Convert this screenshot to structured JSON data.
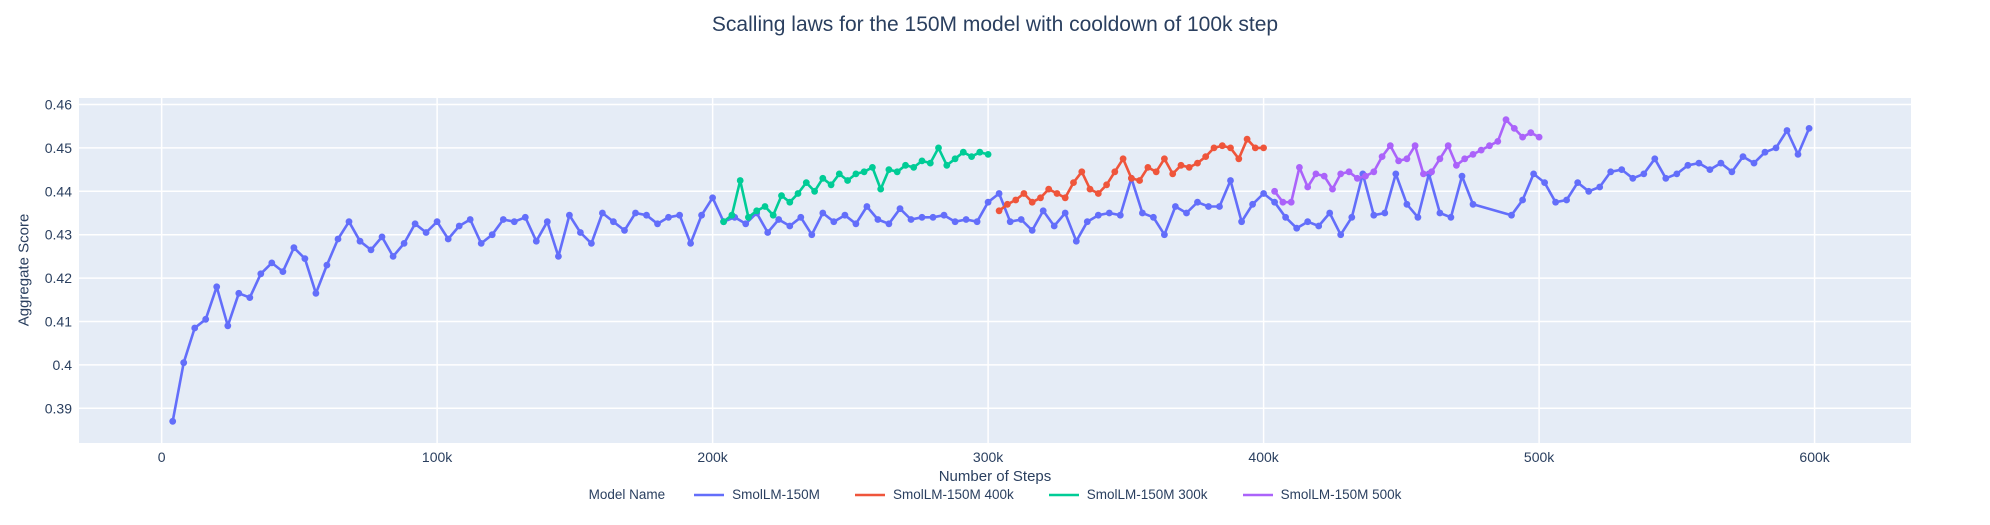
{
  "figure": {
    "title": "Scalling laws for the 150M model with cooldown of 100k step"
  },
  "x_axis": {
    "title": "Number of Steps",
    "ticks": [
      {
        "value": 0,
        "label": "0"
      },
      {
        "value": 100000,
        "label": "100k"
      },
      {
        "value": 200000,
        "label": "200k"
      },
      {
        "value": 300000,
        "label": "300k"
      },
      {
        "value": 400000,
        "label": "400k"
      },
      {
        "value": 500000,
        "label": "500k"
      },
      {
        "value": 600000,
        "label": "600k"
      }
    ]
  },
  "y_axis": {
    "title": "Aggregate Score",
    "ticks": [
      {
        "value": 0.39,
        "label": "0.39"
      },
      {
        "value": 0.4,
        "label": "0.4"
      },
      {
        "value": 0.41,
        "label": "0.41"
      },
      {
        "value": 0.42,
        "label": "0.42"
      },
      {
        "value": 0.43,
        "label": "0.43"
      },
      {
        "value": 0.44,
        "label": "0.44"
      },
      {
        "value": 0.45,
        "label": "0.45"
      },
      {
        "value": 0.46,
        "label": "0.46"
      }
    ]
  },
  "legend": {
    "title": "Model Name"
  },
  "theme": {
    "paper_bg": "#ffffff",
    "plot_bg": "#e5ecf6",
    "grid": "#ffffff",
    "font_color": "#2a3f5f"
  },
  "chart_data": {
    "type": "line",
    "mode": "lines+markers",
    "title": "Scalling laws for the 150M model with cooldown of 100k step",
    "xlabel": "Number of Steps",
    "ylabel": "Aggregate Score",
    "xlim": [
      -30000,
      635000
    ],
    "ylim": [
      0.382,
      0.4615
    ],
    "grid": true,
    "legend_position": "bottom-center",
    "legend_title": "Model Name",
    "series": [
      {
        "name": "SmolLM-150M",
        "color": "#636efa",
        "steps": [
          4000,
          8000,
          12000,
          16000,
          20000,
          24000,
          28000,
          32000,
          36000,
          40000,
          44000,
          48000,
          52000,
          56000,
          60000,
          64000,
          68000,
          72000,
          76000,
          80000,
          84000,
          88000,
          92000,
          96000,
          100000,
          104000,
          108000,
          112000,
          116000,
          120000,
          124000,
          128000,
          132000,
          136000,
          140000,
          144000,
          148000,
          152000,
          156000,
          160000,
          164000,
          168000,
          172000,
          176000,
          180000,
          184000,
          188000,
          192000,
          196000,
          200000,
          204000,
          208000,
          212000,
          216000,
          220000,
          224000,
          228000,
          232000,
          236000,
          240000,
          244000,
          248000,
          252000,
          256000,
          260000,
          264000,
          268000,
          272000,
          276000,
          280000,
          284000,
          288000,
          292000,
          296000,
          300000,
          304000,
          308000,
          312000,
          316000,
          320000,
          324000,
          328000,
          332000,
          336000,
          340000,
          344000,
          348000,
          352000,
          356000,
          360000,
          364000,
          368000,
          372000,
          376000,
          380000,
          384000,
          388000,
          392000,
          396000,
          400000,
          404000,
          408000,
          412000,
          416000,
          420000,
          424000,
          428000,
          432000,
          436000,
          440000,
          444000,
          448000,
          452000,
          456000,
          460000,
          464000,
          468000,
          472000,
          476000,
          490000,
          494000,
          498000,
          502000,
          506000,
          510000,
          514000,
          518000,
          522000,
          526000,
          530000,
          534000,
          538000,
          542000,
          546000,
          550000,
          554000,
          558000,
          562000,
          566000,
          570000,
          574000,
          578000,
          582000,
          586000,
          590000,
          594000,
          598000
        ],
        "scores": [
          0.387,
          0.4005,
          0.4085,
          0.4105,
          0.418,
          0.409,
          0.4165,
          0.4155,
          0.421,
          0.4235,
          0.4215,
          0.427,
          0.4245,
          0.4165,
          0.423,
          0.429,
          0.433,
          0.4285,
          0.4265,
          0.4295,
          0.425,
          0.428,
          0.4325,
          0.4305,
          0.433,
          0.429,
          0.432,
          0.4335,
          0.428,
          0.43,
          0.4335,
          0.433,
          0.434,
          0.4285,
          0.433,
          0.425,
          0.4345,
          0.4305,
          0.428,
          0.435,
          0.433,
          0.431,
          0.435,
          0.4345,
          0.4325,
          0.434,
          0.4345,
          0.428,
          0.4345,
          0.4385,
          0.433,
          0.434,
          0.4325,
          0.435,
          0.4305,
          0.4335,
          0.432,
          0.434,
          0.43,
          0.435,
          0.433,
          0.4345,
          0.4325,
          0.4365,
          0.4335,
          0.4325,
          0.436,
          0.4335,
          0.434,
          0.434,
          0.4345,
          0.433,
          0.4335,
          0.433,
          0.4375,
          0.4395,
          0.433,
          0.4335,
          0.431,
          0.4355,
          0.432,
          0.435,
          0.4285,
          0.433,
          0.4345,
          0.435,
          0.4345,
          0.443,
          0.435,
          0.434,
          0.43,
          0.4365,
          0.435,
          0.4375,
          0.4365,
          0.4365,
          0.4425,
          0.433,
          0.437,
          0.4395,
          0.4375,
          0.434,
          0.4315,
          0.433,
          0.432,
          0.435,
          0.43,
          0.434,
          0.444,
          0.4345,
          0.435,
          0.444,
          0.437,
          0.434,
          0.444,
          0.435,
          0.434,
          0.4435,
          0.437,
          0.4345,
          0.438,
          0.444,
          0.442,
          0.4375,
          0.438,
          0.442,
          0.44,
          0.441,
          0.4445,
          0.445,
          0.443,
          0.444,
          0.4475,
          0.443,
          0.444,
          0.446,
          0.4465,
          0.445,
          0.4465,
          0.4445,
          0.448,
          0.4465,
          0.449,
          0.45,
          0.454,
          0.4485,
          0.4545
        ]
      },
      {
        "name": "SmolLM-150M 400k",
        "color": "#ef553b",
        "steps": [
          304000,
          307000,
          310000,
          313000,
          316000,
          319000,
          322000,
          325000,
          328000,
          331000,
          334000,
          337000,
          340000,
          343000,
          346000,
          349000,
          352000,
          355000,
          358000,
          361000,
          364000,
          367000,
          370000,
          373000,
          376000,
          379000,
          382000,
          385000,
          388000,
          391000,
          394000,
          397000,
          400000
        ],
        "scores": [
          0.4355,
          0.437,
          0.438,
          0.4395,
          0.4375,
          0.4385,
          0.4405,
          0.4395,
          0.4385,
          0.442,
          0.4445,
          0.4405,
          0.4395,
          0.4415,
          0.4445,
          0.4475,
          0.443,
          0.4425,
          0.4455,
          0.4445,
          0.4475,
          0.444,
          0.446,
          0.4455,
          0.4465,
          0.448,
          0.45,
          0.4505,
          0.45,
          0.4475,
          0.452,
          0.45,
          0.45
        ]
      },
      {
        "name": "SmolLM-150M 300k",
        "color": "#00cc96",
        "steps": [
          204000,
          207000,
          210000,
          213000,
          216000,
          219000,
          222000,
          225000,
          228000,
          231000,
          234000,
          237000,
          240000,
          243000,
          246000,
          249000,
          252000,
          255000,
          258000,
          261000,
          264000,
          267000,
          270000,
          273000,
          276000,
          279000,
          282000,
          285000,
          288000,
          291000,
          294000,
          297000,
          300000
        ],
        "scores": [
          0.433,
          0.4345,
          0.4425,
          0.434,
          0.4355,
          0.4365,
          0.4345,
          0.439,
          0.4375,
          0.4395,
          0.442,
          0.44,
          0.443,
          0.4415,
          0.444,
          0.4425,
          0.444,
          0.4445,
          0.4455,
          0.4405,
          0.445,
          0.4445,
          0.446,
          0.4455,
          0.447,
          0.4465,
          0.45,
          0.446,
          0.4475,
          0.449,
          0.448,
          0.449,
          0.4485
        ]
      },
      {
        "name": "SmolLM-150M 500k",
        "color": "#ab63fa",
        "steps": [
          404000,
          407000,
          410000,
          413000,
          416000,
          419000,
          422000,
          425000,
          428000,
          431000,
          434000,
          437000,
          440000,
          443000,
          446000,
          449000,
          452000,
          455000,
          458000,
          461000,
          464000,
          467000,
          470000,
          473000,
          476000,
          479000,
          482000,
          485000,
          488000,
          491000,
          494000,
          497000,
          500000
        ],
        "scores": [
          0.44,
          0.4375,
          0.4375,
          0.4455,
          0.441,
          0.444,
          0.4435,
          0.4405,
          0.444,
          0.4445,
          0.443,
          0.4435,
          0.4445,
          0.448,
          0.4505,
          0.447,
          0.4475,
          0.4505,
          0.444,
          0.4445,
          0.4475,
          0.4505,
          0.446,
          0.4475,
          0.4485,
          0.4495,
          0.4505,
          0.4515,
          0.4565,
          0.4545,
          0.4525,
          0.4535,
          0.4525
        ]
      }
    ]
  }
}
